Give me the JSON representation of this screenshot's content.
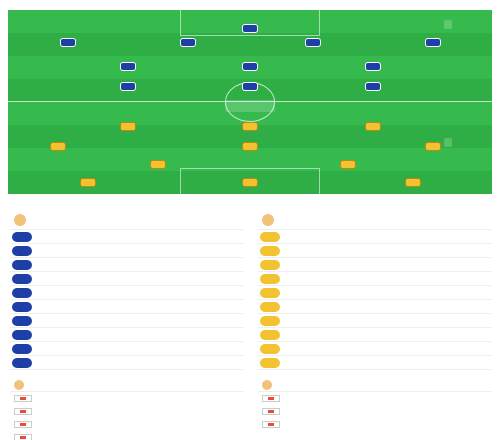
{
  "lineup": {
    "title": "",
    "subtitle": "",
    "home_label": "",
    "away_label": "",
    "home_formation": "",
    "away_formation": "",
    "home_coach_line": "",
    "away_coach_line": "",
    "center_label": "",
    "home_players": [
      {
        "num": "",
        "name": ""
      },
      {
        "num": "",
        "name": ""
      },
      {
        "num": "",
        "name": ""
      },
      {
        "num": "",
        "name": ""
      },
      {
        "num": "",
        "name": ""
      },
      {
        "num": "",
        "name": ""
      },
      {
        "num": "",
        "name": ""
      },
      {
        "num": "",
        "name": ""
      },
      {
        "num": "",
        "name": ""
      },
      {
        "num": "",
        "name": ""
      },
      {
        "num": "",
        "name": ""
      }
    ],
    "away_players": [
      {
        "num": "",
        "name": ""
      },
      {
        "num": "",
        "name": ""
      },
      {
        "num": "",
        "name": ""
      },
      {
        "num": "",
        "name": ""
      },
      {
        "num": "",
        "name": ""
      },
      {
        "num": "",
        "name": ""
      },
      {
        "num": "",
        "name": ""
      },
      {
        "num": "",
        "name": ""
      },
      {
        "num": "",
        "name": ""
      },
      {
        "num": "",
        "name": ""
      },
      {
        "num": "",
        "name": ""
      }
    ]
  },
  "subs": {
    "title": "",
    "home_coach": "",
    "away_coach": "",
    "home": [
      {
        "num": "",
        "name": "",
        "pos": "",
        "tag": ""
      },
      {
        "num": "",
        "name": "",
        "pos": "",
        "tag": ""
      },
      {
        "num": "",
        "name": "",
        "pos": "",
        "tag": ""
      },
      {
        "num": "",
        "name": "",
        "pos": "",
        "tag": ""
      },
      {
        "num": "",
        "name": "",
        "pos": "",
        "tag": ""
      },
      {
        "num": "",
        "name": "",
        "pos": "",
        "tag": ""
      },
      {
        "num": "",
        "name": "",
        "pos": "",
        "tag": ""
      },
      {
        "num": "",
        "name": "",
        "pos": "",
        "tag": ""
      },
      {
        "num": "",
        "name": "",
        "pos": "",
        "tag": ""
      },
      {
        "num": "",
        "name": "",
        "pos": "",
        "tag": ""
      }
    ],
    "away": [
      {
        "num": "",
        "name": "",
        "pos": "",
        "tag": ""
      },
      {
        "num": "",
        "name": "",
        "pos": "",
        "tag": ""
      },
      {
        "num": "",
        "name": "",
        "pos": "",
        "tag": ""
      },
      {
        "num": "",
        "name": "",
        "pos": "",
        "tag": ""
      },
      {
        "num": "",
        "name": "",
        "pos": "",
        "tag": ""
      },
      {
        "num": "",
        "name": "",
        "pos": "",
        "tag": ""
      },
      {
        "num": "",
        "name": "",
        "pos": "",
        "tag": ""
      },
      {
        "num": "",
        "name": "",
        "pos": "",
        "tag": ""
      },
      {
        "num": "",
        "name": "",
        "pos": "",
        "tag": ""
      },
      {
        "num": "",
        "name": "",
        "pos": "",
        "tag": ""
      }
    ]
  },
  "injuries": {
    "title": "",
    "home_header": "",
    "away_header": "",
    "home": [
      {
        "name": ""
      },
      {
        "name": ""
      },
      {
        "name": ""
      },
      {
        "name": ""
      }
    ],
    "away": [
      {
        "name": ""
      },
      {
        "name": ""
      },
      {
        "name": ""
      }
    ]
  },
  "colors": {
    "home": "#1e3ea8",
    "away": "#f2c230",
    "pitch": "#2fae45",
    "accent": "#c0392b"
  }
}
